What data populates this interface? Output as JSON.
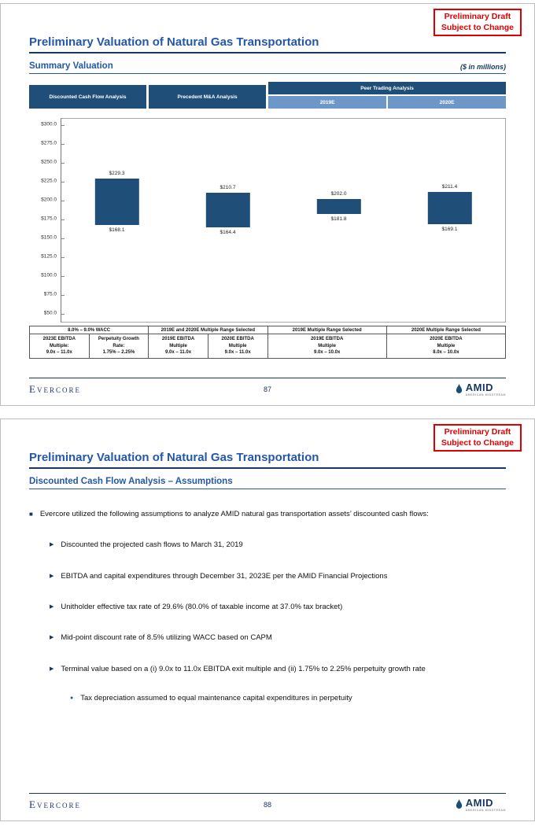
{
  "stamp": "Preliminary Draft\nSubject to Change",
  "brand": {
    "footer_logo_text": "Evercore",
    "amid_text": "AMID",
    "amid_subtext": "AMERICAN MIDSTREAM"
  },
  "page1": {
    "title": "Preliminary Valuation of Natural Gas Transportation",
    "section": "Summary Valuation",
    "units_note": "($ in millions)",
    "header": {
      "col1": "Discounted Cash Flow Analysis",
      "col2": "Precedent M&A Analysis",
      "col3": "Peer Trading Analysis",
      "sub1": "2019E",
      "sub2": "2020E"
    },
    "table": {
      "groups": [
        {
          "header": "8.0% – 9.0% WACC",
          "cells": [
            "2023E EBITDA\nMultiple:\n9.0x – 11.0x",
            "Perpetuity Growth\nRate:\n1.75% – 2.25%"
          ]
        },
        {
          "header": "2019E and 2020E Multiple Range Selected",
          "cells": [
            "2019E EBITDA\nMultiple\n9.0x – 11.0x",
            "2020E EBITDA\nMultiple\n9.0x – 11.0x"
          ]
        },
        {
          "header": "2019E Multiple Range Selected",
          "cells": [
            "2019E EBITDA\nMultiple\n9.0x – 10.0x"
          ]
        },
        {
          "header": "2020E Multiple Range Selected",
          "cells": [
            "2020E EBITDA\nMultiple\n8.0x – 10.0x"
          ]
        }
      ]
    },
    "page_number": "87"
  },
  "page2": {
    "title": "Preliminary Valuation of Natural Gas Transportation",
    "section": "Discounted Cash Flow Analysis – Assumptions",
    "lead_bullet": "Evercore utilized the following assumptions to analyze AMID natural gas transportation assets’ discounted cash flows:",
    "bullets": [
      "Discounted the projected cash flows to March 31, 2019",
      "EBITDA and capital expenditures through December 31, 2023E per the AMID Financial Projections",
      "Unitholder effective tax rate of 29.6% (80.0% of taxable income at 37.0% tax bracket)",
      "Mid-point discount rate of 8.5% utilizing WACC based on CAPM",
      "Terminal value based on a (i) 9.0x to 11.0x EBITDA exit multiple and (ii) 1.75% to 2.25% perpetuity growth rate"
    ],
    "sub_bullet": "Tax depreciation assumed to equal maintenance capital expenditures in perpetuity",
    "page_number": "88"
  },
  "chart_data": {
    "type": "bar",
    "subtype": "floating_range",
    "title": "Summary Valuation",
    "units": "($ in millions)",
    "categories": [
      "Discounted Cash Flow Analysis",
      "Precedent M&A Analysis",
      "Peer Trading Analysis – 2019E",
      "Peer Trading Analysis – 2020E"
    ],
    "series": [
      {
        "name": "Valuation Range",
        "ranges": [
          [
            168.1,
            229.3
          ],
          [
            164.4,
            210.7
          ],
          [
            181.8,
            202.0
          ],
          [
            169.1,
            211.4
          ]
        ]
      }
    ],
    "labels": {
      "high": [
        "$229.3",
        "$210.7",
        "$202.0",
        "$211.4"
      ],
      "low": [
        "$168.1",
        "$164.4",
        "$181.8",
        "$169.1"
      ]
    },
    "ylim": [
      50,
      300
    ],
    "yticks": [
      "$300.0",
      "$275.0",
      "$250.0",
      "$225.0",
      "$200.0",
      "$175.0",
      "$150.0",
      "$125.0",
      "$100.0",
      "$75.0",
      "$50.0"
    ],
    "grid": false,
    "legend": "none",
    "bar_color": "#1f4e79"
  }
}
